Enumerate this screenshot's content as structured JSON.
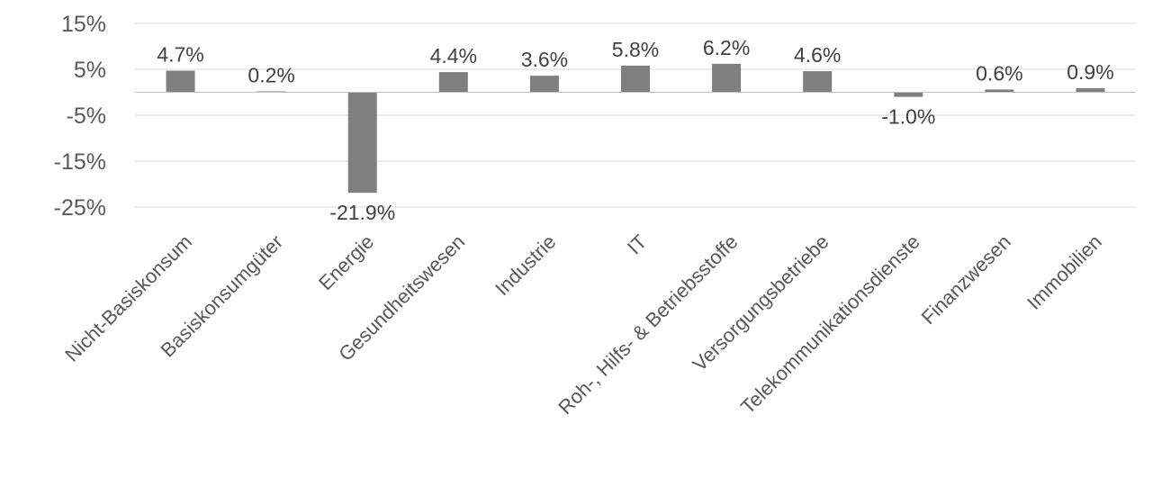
{
  "chart_data": {
    "type": "bar",
    "categories": [
      "Nicht-Basiskonsum",
      "Basiskonsumgüter",
      "Energie",
      "Gesundheitswesen",
      "Industrie",
      "IT",
      "Roh-, Hilfs- & Betriebsstoffe",
      "Versorgungsbetriebe",
      "Telekommunikationsdienste",
      "Finanzwesen",
      "Immobilien"
    ],
    "values": [
      4.7,
      0.2,
      -21.9,
      4.4,
      3.6,
      5.8,
      6.2,
      4.6,
      -1.0,
      0.6,
      0.9
    ],
    "data_labels": [
      "4.7%",
      "0.2%",
      "-21.9%",
      "4.4%",
      "3.6%",
      "5.8%",
      "6.2%",
      "4.6%",
      "-1.0%",
      "0.6%",
      "0.9%"
    ],
    "y_ticks": [
      15,
      5,
      -5,
      -15,
      -25
    ],
    "y_tick_labels": [
      "15%",
      "5%",
      "-5%",
      "-15%",
      "-25%"
    ],
    "ylim": [
      -25,
      15
    ],
    "title": "",
    "xlabel": "",
    "ylabel": "",
    "grid": true,
    "legend": "none",
    "bar_color": "#7f7f7f"
  }
}
